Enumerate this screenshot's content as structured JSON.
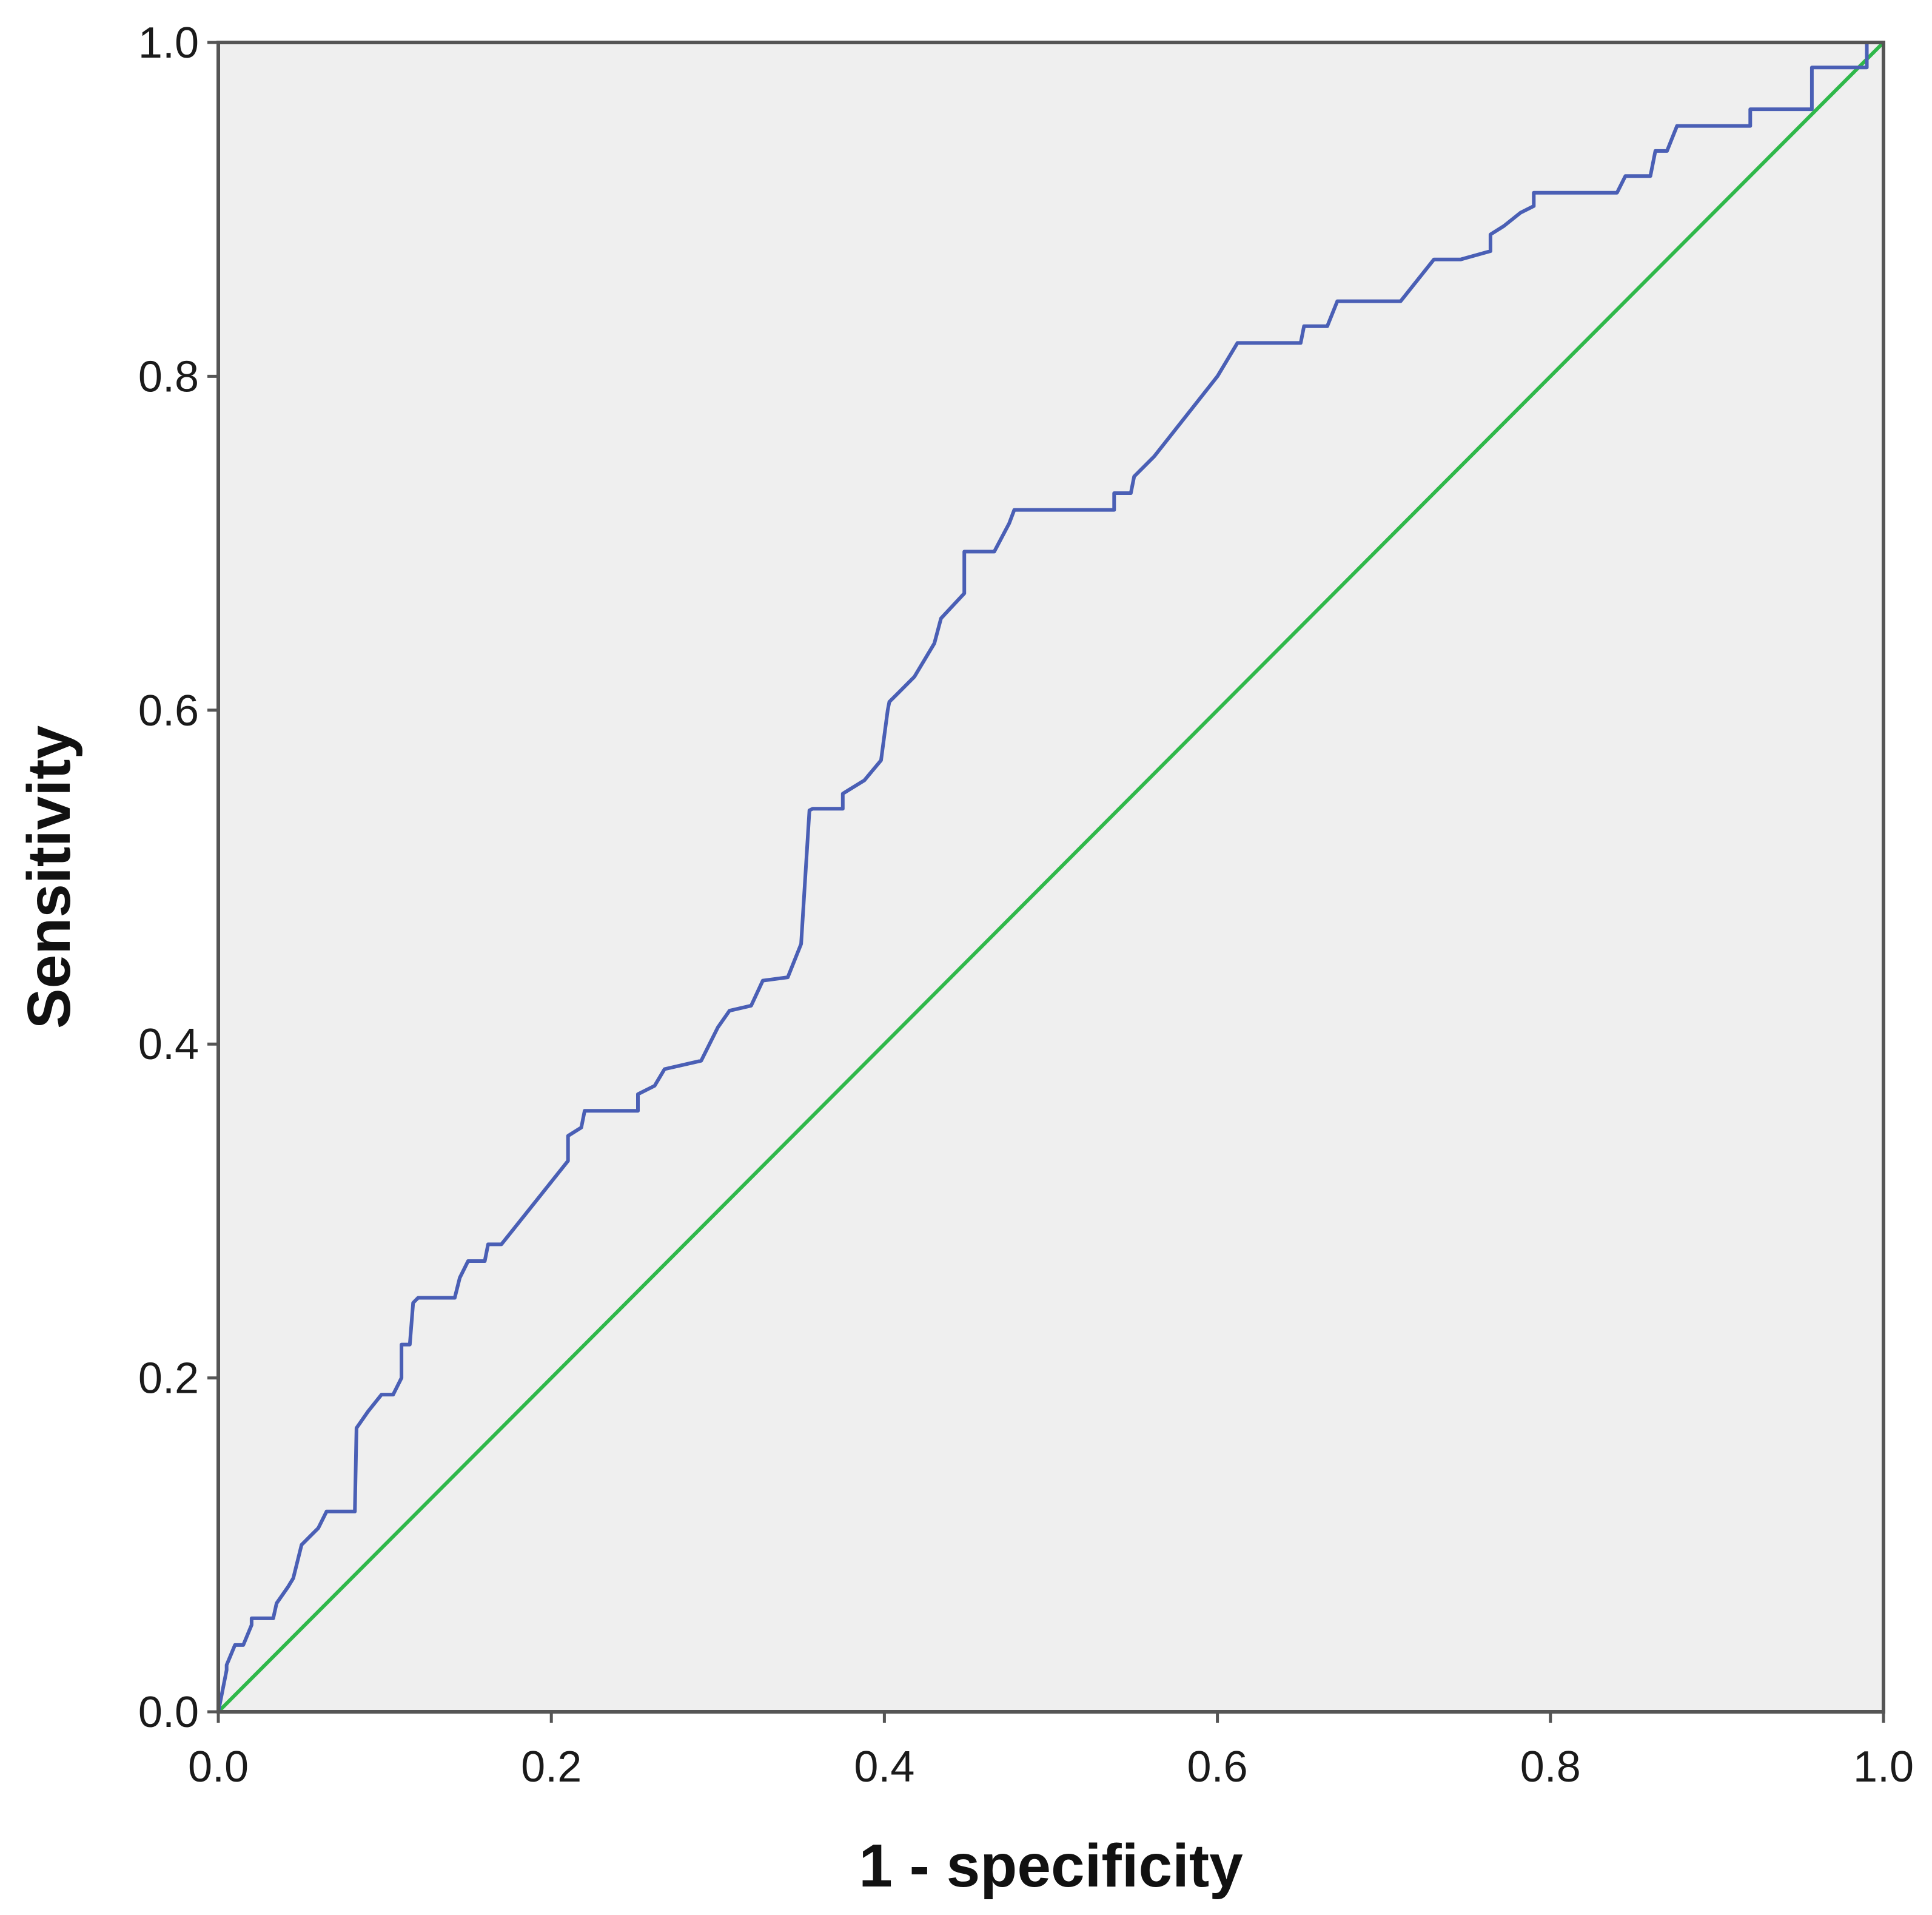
{
  "chart_data": {
    "type": "line",
    "title": "",
    "xlabel": "1 - specificity",
    "ylabel": "Sensitivity",
    "xlim": [
      0,
      1
    ],
    "ylim": [
      0,
      1
    ],
    "grid": false,
    "x_ticks": [
      "0.0",
      "0.2",
      "0.4",
      "0.6",
      "0.8",
      "1.0"
    ],
    "y_ticks": [
      "0.0",
      "0.2",
      "0.4",
      "0.6",
      "0.8",
      "1.0"
    ],
    "series": [
      {
        "color": "#4a5fb5",
        "x": [
          0.0,
          0.005,
          0.005,
          0.01,
          0.015,
          0.02,
          0.02,
          0.033,
          0.035,
          0.042,
          0.045,
          0.05,
          0.055,
          0.06,
          0.065,
          0.082,
          0.083,
          0.09,
          0.098,
          0.105,
          0.11,
          0.11,
          0.115,
          0.117,
          0.12,
          0.142,
          0.145,
          0.15,
          0.16,
          0.162,
          0.17,
          0.178,
          0.21,
          0.21,
          0.218,
          0.22,
          0.252,
          0.252,
          0.262,
          0.268,
          0.29,
          0.3,
          0.307,
          0.32,
          0.327,
          0.342,
          0.35,
          0.355,
          0.357,
          0.375,
          0.375,
          0.388,
          0.398,
          0.402,
          0.403,
          0.41,
          0.418,
          0.43,
          0.434,
          0.448,
          0.448,
          0.466,
          0.475,
          0.478,
          0.538,
          0.538,
          0.548,
          0.55,
          0.562,
          0.6,
          0.612,
          0.65,
          0.652,
          0.666,
          0.672,
          0.71,
          0.73,
          0.746,
          0.764,
          0.764,
          0.772,
          0.782,
          0.79,
          0.79,
          0.84,
          0.845,
          0.86,
          0.863,
          0.87,
          0.876,
          0.92,
          0.92,
          0.957,
          0.957,
          0.99,
          0.99,
          1.0
        ],
        "y": [
          0.0,
          0.025,
          0.028,
          0.04,
          0.04,
          0.052,
          0.056,
          0.056,
          0.065,
          0.075,
          0.08,
          0.1,
          0.105,
          0.11,
          0.12,
          0.12,
          0.17,
          0.18,
          0.19,
          0.19,
          0.2,
          0.22,
          0.22,
          0.245,
          0.248,
          0.248,
          0.26,
          0.27,
          0.27,
          0.28,
          0.28,
          0.29,
          0.33,
          0.345,
          0.35,
          0.36,
          0.36,
          0.37,
          0.375,
          0.385,
          0.39,
          0.41,
          0.42,
          0.423,
          0.438,
          0.44,
          0.46,
          0.54,
          0.541,
          0.541,
          0.55,
          0.558,
          0.57,
          0.6,
          0.605,
          0.612,
          0.62,
          0.64,
          0.655,
          0.67,
          0.695,
          0.695,
          0.712,
          0.72,
          0.72,
          0.73,
          0.73,
          0.74,
          0.752,
          0.8,
          0.82,
          0.82,
          0.83,
          0.83,
          0.845,
          0.845,
          0.87,
          0.87,
          0.875,
          0.885,
          0.89,
          0.898,
          0.902,
          0.91,
          0.91,
          0.92,
          0.92,
          0.935,
          0.935,
          0.95,
          0.95,
          0.96,
          0.96,
          0.985,
          0.985,
          1.0,
          1.0
        ]
      },
      {
        "color": "#2fb84a",
        "x": [
          0,
          1
        ],
        "y": [
          0,
          1
        ]
      }
    ]
  }
}
